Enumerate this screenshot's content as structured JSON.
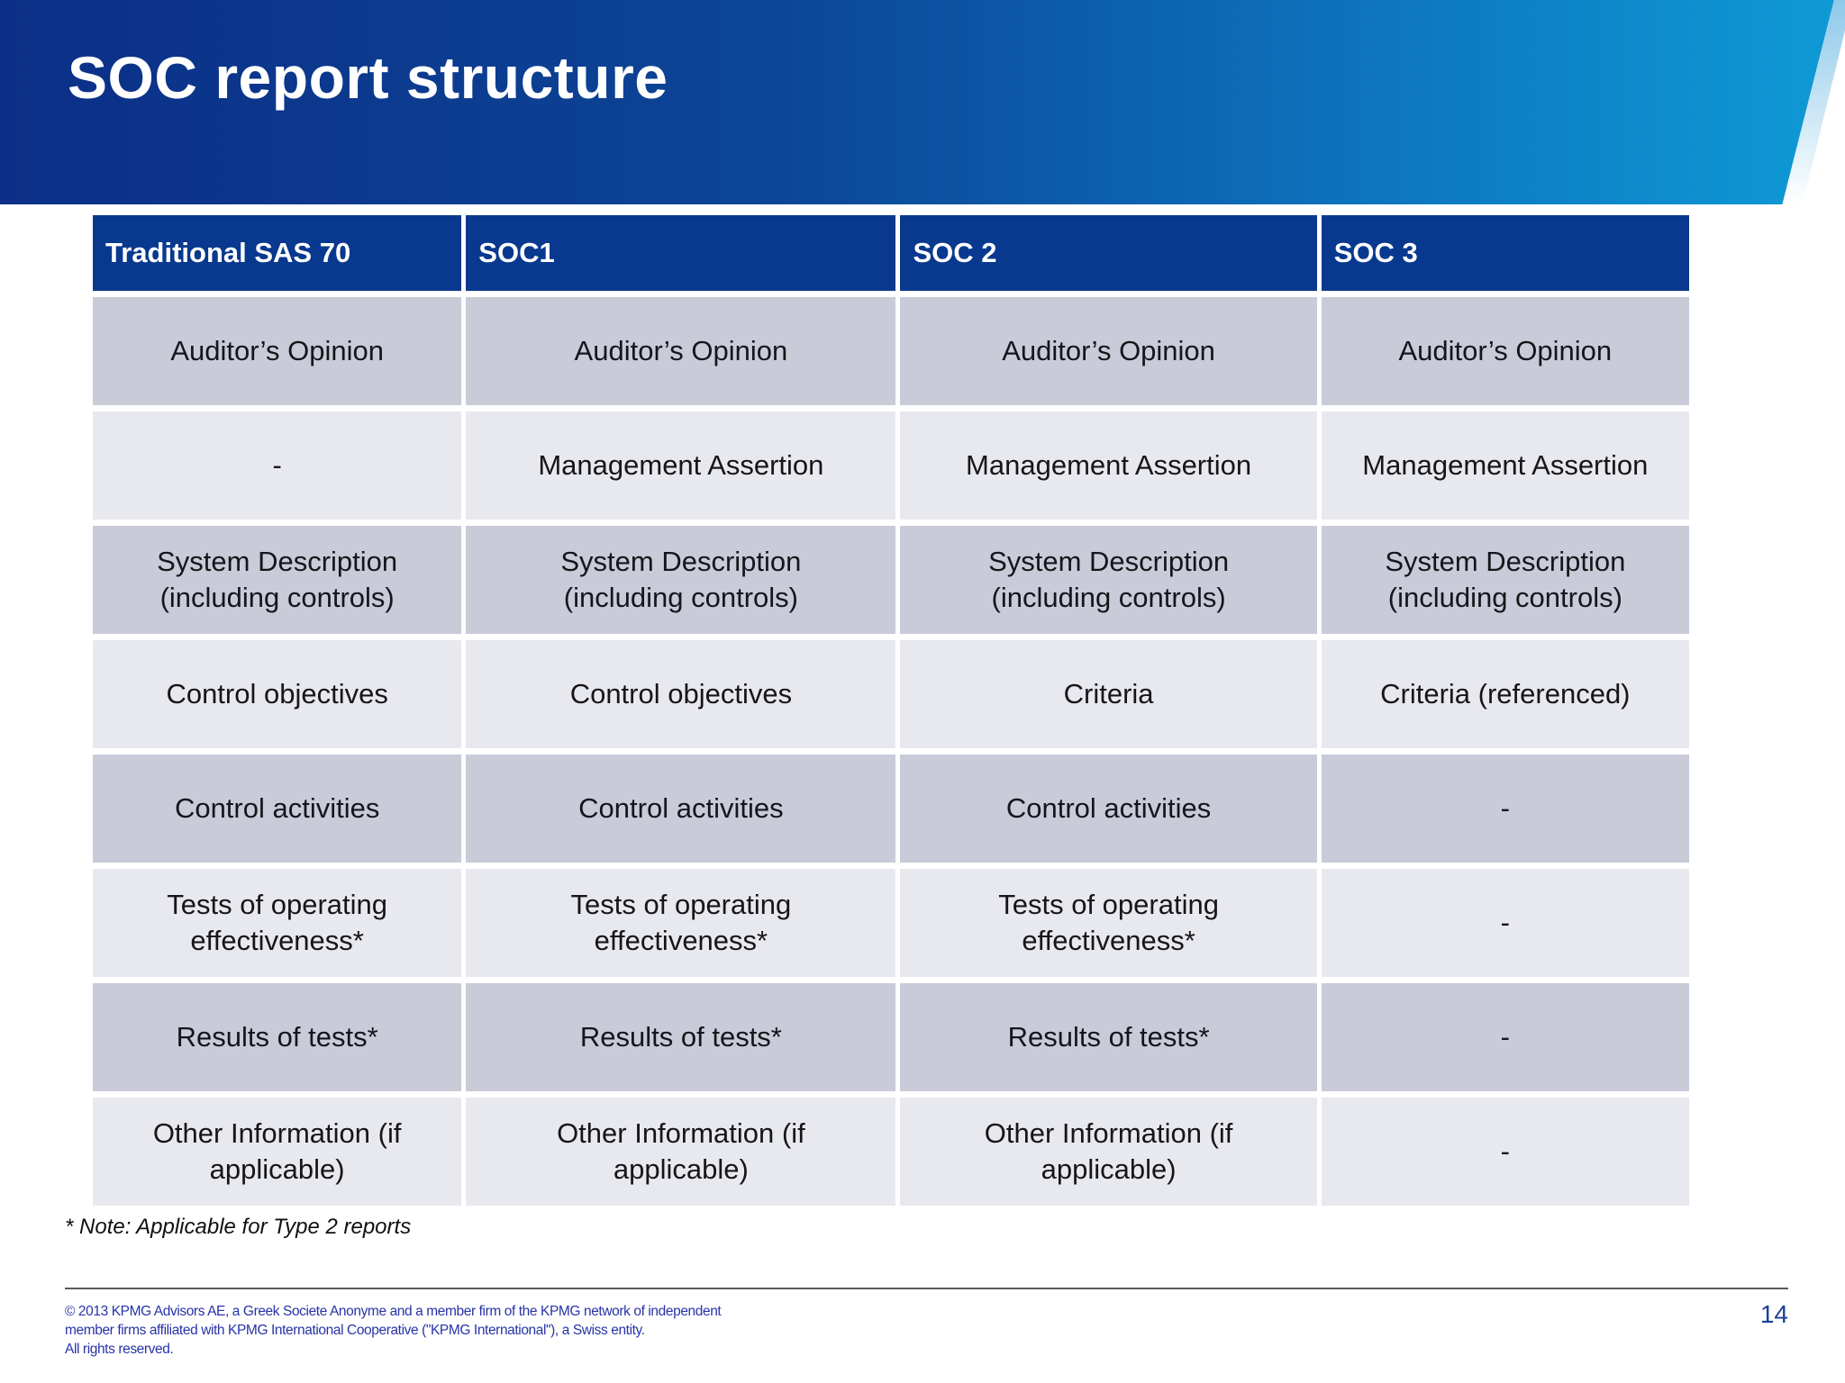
{
  "slide": {
    "title": "SOC report structure",
    "note": "* Note: Applicable for Type 2 reports",
    "footer_lines": [
      "© 2013 KPMG Advisors AE, a Greek Societe Anonyme and a member firm of the KPMG network of independent",
      "member firms affiliated with KPMG International Cooperative (\"KPMG International\"), a Swiss entity.",
      "All rights reserved."
    ],
    "page_number": "14"
  },
  "table": {
    "headers": [
      "Traditional SAS 70",
      "SOC1",
      "SOC 2",
      "SOC 3"
    ],
    "rows": [
      [
        "Auditor’s Opinion",
        "Auditor’s Opinion",
        "Auditor’s Opinion",
        "Auditor’s Opinion"
      ],
      [
        "-",
        "Management Assertion",
        "Management Assertion",
        "Management Assertion"
      ],
      [
        "System Description (including controls)",
        "System Description (including controls)",
        "System Description (including controls)",
        "System Description (including controls)"
      ],
      [
        "Control objectives",
        "Control objectives",
        "Criteria",
        "Criteria (referenced)"
      ],
      [
        "Control activities",
        "Control activities",
        "Control activities",
        "-"
      ],
      [
        "Tests of operating effectiveness*",
        "Tests of operating effectiveness*",
        "Tests of operating effectiveness*",
        "-"
      ],
      [
        "Results of tests*",
        "Results of tests*",
        "Results of tests*",
        "-"
      ],
      [
        "Other Information (if applicable)",
        "Other Information (if applicable)",
        "Other Information (if applicable)",
        "-"
      ]
    ]
  },
  "colors": {
    "band_left": "#0b2f86",
    "band_mid1": "#0c4597",
    "band_mid2": "#0d74bd",
    "band_right": "#0e9bd6",
    "band_accent": "#8ec9ea",
    "header_bg": "#08398e",
    "row_dark": "#c9cbd9",
    "row_light": "#e8e9ee",
    "footer_blue": "#2733a7",
    "page_blue": "#1c3f9a",
    "rule_color": "#595b5f"
  }
}
